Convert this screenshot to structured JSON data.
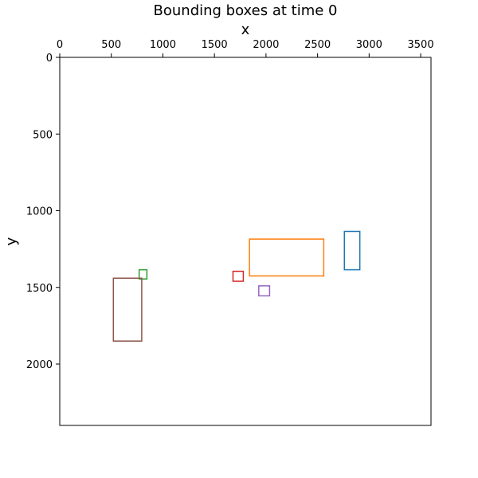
{
  "chart_data": {
    "type": "scatter",
    "title": "Bounding boxes at time 0",
    "xlabel": "x",
    "ylabel": "y",
    "xlim": [
      0,
      3600
    ],
    "ylim": [
      2400,
      0
    ],
    "x_axis_position": "top",
    "y_inverted": true,
    "grid": false,
    "x_ticks": [
      0,
      500,
      1000,
      1500,
      2000,
      2500,
      3000,
      3500
    ],
    "x_tick_labels": [
      "0",
      "500",
      "1000",
      "1500",
      "2000",
      "2500",
      "3000",
      "3500"
    ],
    "y_ticks": [
      0,
      500,
      1000,
      1500,
      2000
    ],
    "y_tick_labels": [
      "0",
      "500",
      "1000",
      "1500",
      "2000"
    ],
    "boxes": [
      {
        "x_min": 2760,
        "x_max": 2910,
        "y_min": 1135,
        "y_max": 1385,
        "color": "#1f77b4"
      },
      {
        "x_min": 1840,
        "x_max": 2560,
        "y_min": 1185,
        "y_max": 1425,
        "color": "#ff7f0e"
      },
      {
        "x_min": 770,
        "x_max": 845,
        "y_min": 1385,
        "y_max": 1445,
        "color": "#2ca02c"
      },
      {
        "x_min": 1680,
        "x_max": 1780,
        "y_min": 1395,
        "y_max": 1460,
        "color": "#d62728"
      },
      {
        "x_min": 1930,
        "x_max": 2035,
        "y_min": 1490,
        "y_max": 1555,
        "color": "#9467bd"
      },
      {
        "x_min": 520,
        "x_max": 795,
        "y_min": 1440,
        "y_max": 1850,
        "color": "#8c564b"
      }
    ]
  }
}
